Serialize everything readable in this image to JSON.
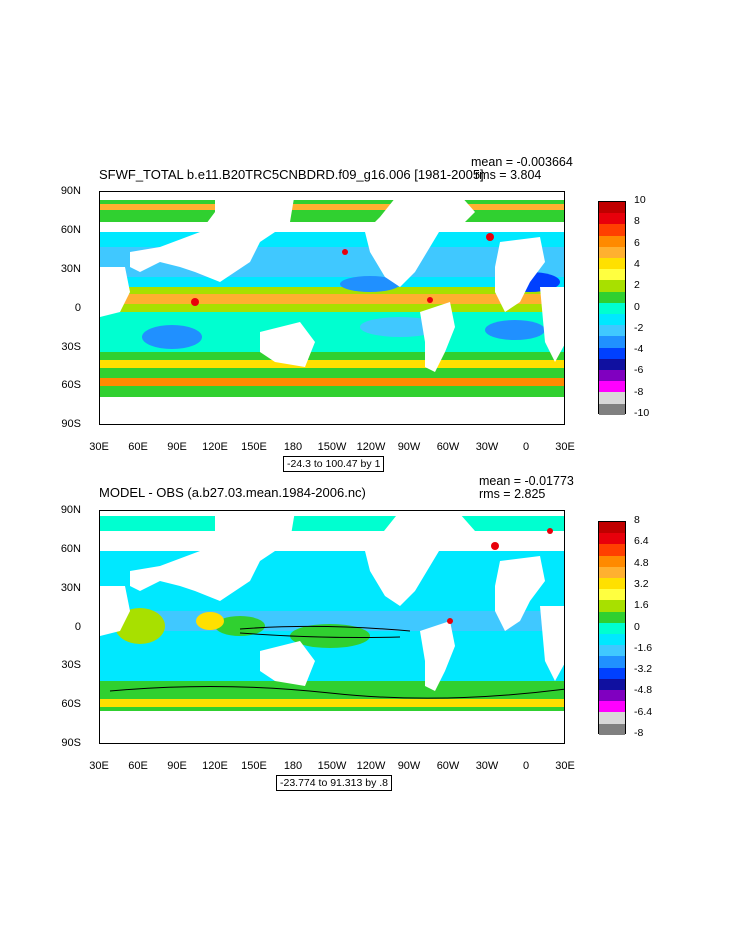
{
  "panels": [
    {
      "title": "SFWF_TOTAL b.e11.B20TRC5CNBDRD.f09_g16.006 [1981-2005]",
      "mean_text": "mean = -0.003664",
      "rms_text": "rms = 3.804",
      "range_text": "-24.3 to 100.47 by 1",
      "colorbar_labels": [
        "10",
        "8",
        "6",
        "4",
        "2",
        "0",
        "-2",
        "-4",
        "-6",
        "-8",
        "-10"
      ]
    },
    {
      "title": "MODEL - OBS (a.b27.03.mean.1984-2006.nc)",
      "mean_text": "mean = -0.01773",
      "rms_text": "rms = 2.825",
      "range_text": "-23.774 to 91.313 by .8",
      "colorbar_labels": [
        "8",
        "6.4",
        "4.8",
        "3.2",
        "1.6",
        "0",
        "-1.6",
        "-3.2",
        "-4.8",
        "-6.4",
        "-8"
      ]
    }
  ],
  "lat_labels": [
    "90N",
    "60N",
    "30N",
    "0",
    "30S",
    "60S",
    "90S"
  ],
  "lon_labels": [
    "30E",
    "60E",
    "90E",
    "120E",
    "150E",
    "180",
    "150W",
    "120W",
    "90W",
    "60W",
    "30W",
    "0",
    "30E"
  ],
  "colorbar_colors": [
    "#c00000",
    "#e8000b",
    "#ff4000",
    "#ff8a00",
    "#ffb030",
    "#ffe000",
    "#ffff40",
    "#a8e000",
    "#30d030",
    "#00ffd0",
    "#00e8ff",
    "#40c8ff",
    "#2090ff",
    "#0040ff",
    "#1010a0",
    "#8000c0",
    "#ff00ff",
    "#d8d8d8",
    "#808080"
  ]
}
